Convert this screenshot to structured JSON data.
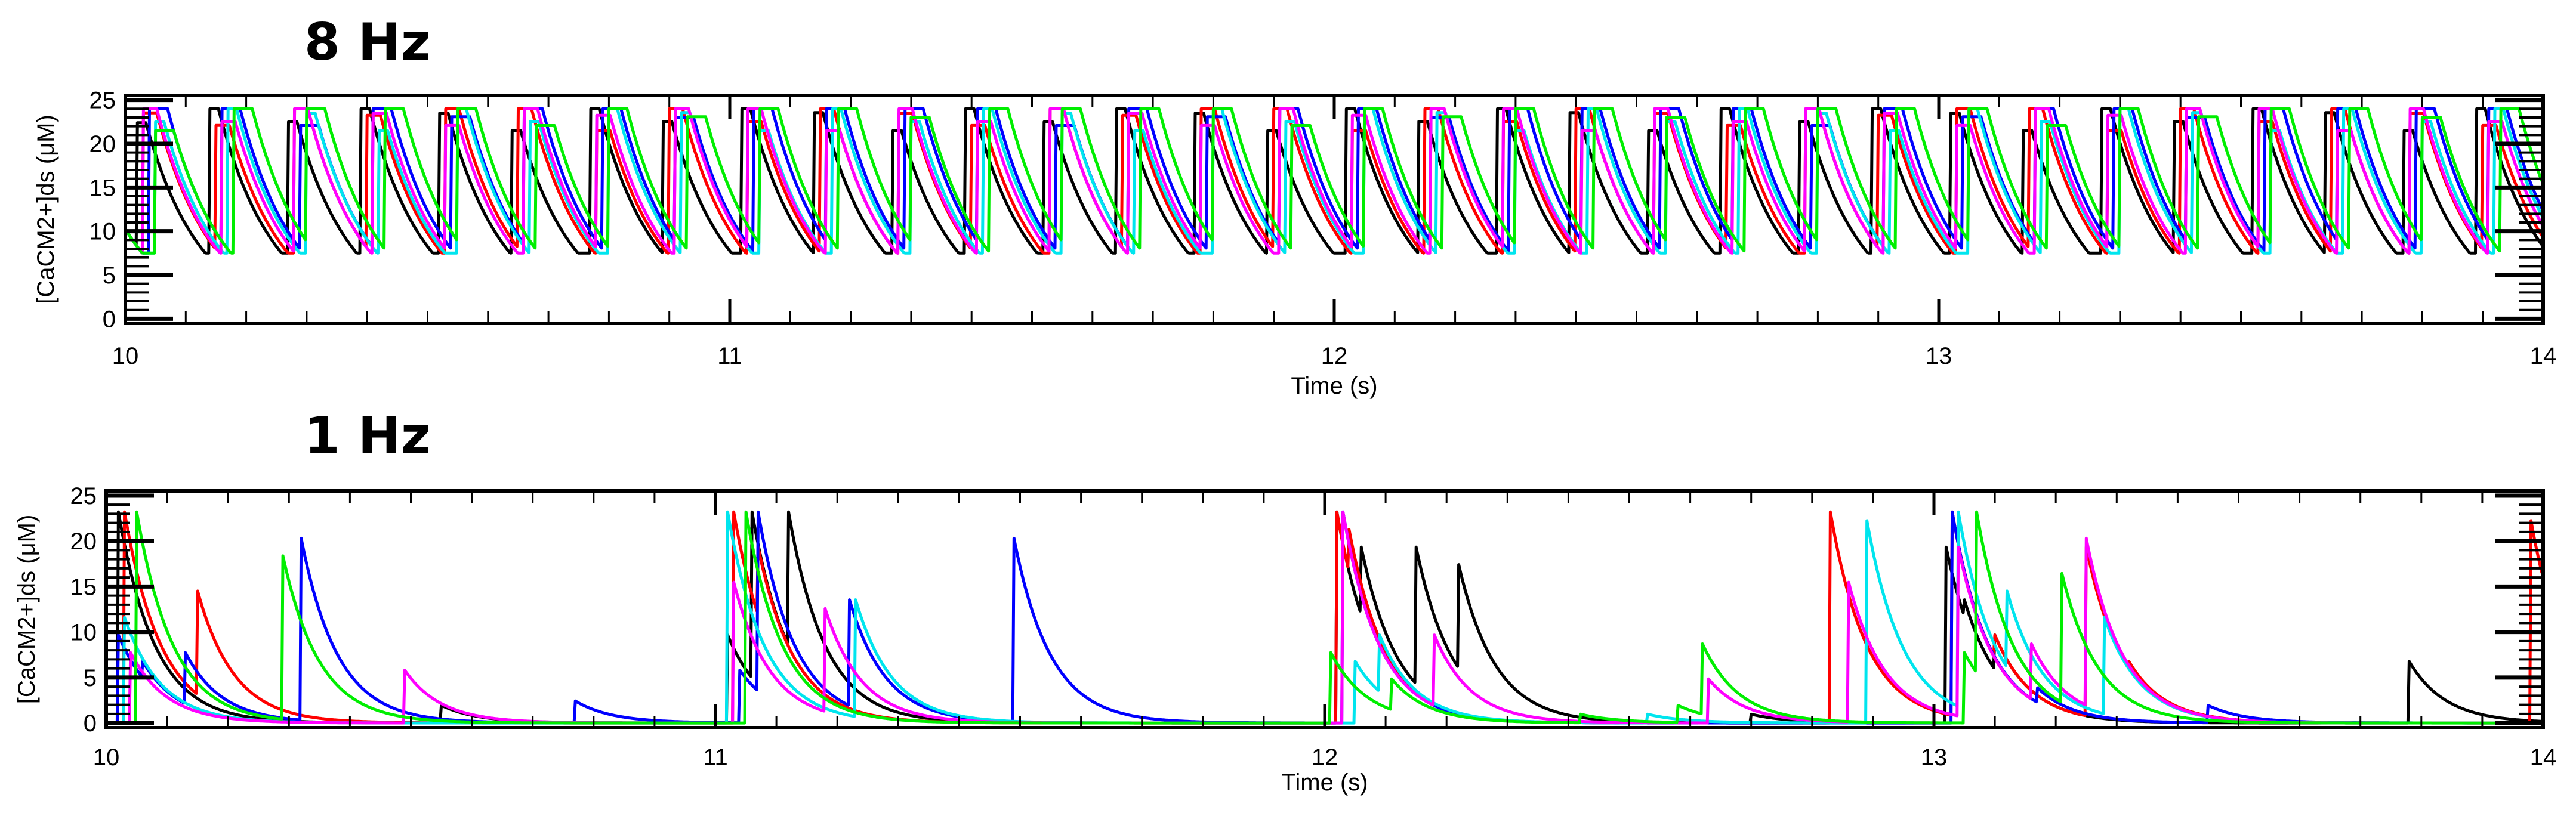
{
  "chart_data": [
    {
      "type": "line",
      "title": "8 Hz",
      "xlabel": "Time (s)",
      "ylabel": "[CaCM2+]ds (μM)",
      "xlim": [
        10,
        14
      ],
      "ylim": [
        0,
        25
      ],
      "xticks": [
        "10",
        "11",
        "12",
        "13",
        "14"
      ],
      "yticks": [
        "0",
        "5",
        "10",
        "15",
        "20",
        "25"
      ],
      "stimulus_rate_hz": 8,
      "colors": [
        "#000000",
        "#ff0000",
        "#0000ff",
        "#00e5ee",
        "#ff00ff",
        "#00ff00"
      ],
      "series": [
        {
          "name": "black",
          "color": "#000000",
          "spike_times": [
            10.02,
            10.14,
            10.27,
            10.39,
            10.52,
            10.64,
            10.77,
            10.89,
            11.02,
            11.14,
            11.27,
            11.39,
            11.52,
            11.64,
            11.77,
            11.89,
            12.02,
            12.14,
            12.27,
            12.39,
            12.52,
            12.64,
            12.77,
            12.89,
            13.02,
            13.14,
            13.27,
            13.39,
            13.52,
            13.64,
            13.77,
            13.89
          ],
          "peak": 24
        },
        {
          "name": "red",
          "color": "#ff0000",
          "spike_times": [
            10.03,
            10.15,
            10.28,
            10.4,
            10.53,
            10.65,
            10.78,
            10.9,
            11.03,
            11.15,
            11.28,
            11.4,
            11.53,
            11.65,
            11.78,
            11.9,
            12.03,
            12.15,
            12.28,
            12.4,
            12.53,
            12.65,
            12.78,
            12.9,
            13.03,
            13.15,
            13.28,
            13.4,
            13.53,
            13.65,
            13.78,
            13.9
          ],
          "peak": 24
        },
        {
          "name": "blue",
          "color": "#0000ff",
          "spike_times": [
            10.04,
            10.16,
            10.29,
            10.41,
            10.54,
            10.66,
            10.79,
            10.91,
            11.04,
            11.16,
            11.29,
            11.41,
            11.54,
            11.66,
            11.79,
            11.91,
            12.04,
            12.16,
            12.29,
            12.41,
            12.54,
            12.66,
            12.79,
            12.91,
            13.04,
            13.16,
            13.29,
            13.41,
            13.54,
            13.66,
            13.79,
            13.91
          ],
          "peak": 24
        },
        {
          "name": "cyan",
          "color": "#00e5ee",
          "spike_times": [
            10.05,
            10.17,
            10.3,
            10.42,
            10.55,
            10.67,
            10.8,
            10.92,
            11.05,
            11.17,
            11.3,
            11.42,
            11.55,
            11.67,
            11.8,
            11.92,
            12.05,
            12.17,
            12.3,
            12.42,
            12.55,
            12.67,
            12.8,
            12.92,
            13.05,
            13.17,
            13.3,
            13.42,
            13.55,
            13.67,
            13.8,
            13.92
          ],
          "peak": 24
        },
        {
          "name": "magenta",
          "color": "#ff00ff",
          "spike_times": [
            10.03,
            10.16,
            10.28,
            10.41,
            10.53,
            10.66,
            10.78,
            10.91,
            11.03,
            11.16,
            11.28,
            11.41,
            11.53,
            11.66,
            11.78,
            11.91,
            12.03,
            12.16,
            12.28,
            12.41,
            12.53,
            12.66,
            12.78,
            12.91,
            13.03,
            13.16,
            13.28,
            13.41,
            13.53,
            13.66,
            13.78,
            13.91
          ],
          "peak": 24
        },
        {
          "name": "green",
          "color": "#00ee00",
          "spike_times": [
            10.05,
            10.18,
            10.3,
            10.43,
            10.55,
            10.68,
            10.8,
            10.93,
            11.05,
            11.18,
            11.3,
            11.43,
            11.55,
            11.68,
            11.8,
            11.93,
            12.05,
            12.18,
            12.3,
            12.43,
            12.55,
            12.68,
            12.8,
            12.93,
            13.05,
            13.18,
            13.3,
            13.43,
            13.55,
            13.68,
            13.8,
            13.93
          ],
          "peak": 24
        }
      ],
      "decay_tau_s": 0.09,
      "trough": 7.5
    },
    {
      "type": "line",
      "title": "1 Hz",
      "xlabel": "Time (s)",
      "ylabel": "[CaCM2+]ds (μM)",
      "xlim": [
        10,
        14
      ],
      "ylim": [
        0,
        25
      ],
      "xticks": [
        "10",
        "11",
        "12",
        "13",
        "14"
      ],
      "yticks": [
        "0",
        "5",
        "10",
        "15",
        "20",
        "25"
      ],
      "stimulus_rate_hz": 1,
      "series": [
        {
          "name": "black",
          "color": "#000000",
          "events": [
            [
              10.02,
              24
            ],
            [
              10.03,
              10
            ],
            [
              10.55,
              2
            ],
            [
              11.02,
              10
            ],
            [
              11.06,
              24
            ],
            [
              11.12,
              24
            ],
            [
              11.2,
              5
            ],
            [
              12.02,
              24
            ],
            [
              12.06,
              20
            ],
            [
              12.15,
              20
            ],
            [
              12.22,
              18
            ],
            [
              12.27,
              6
            ],
            [
              12.7,
              1
            ],
            [
              13.02,
              20
            ],
            [
              13.05,
              14
            ],
            [
              13.1,
              10
            ],
            [
              13.78,
              7
            ]
          ]
        },
        {
          "name": "red",
          "color": "#ff0000",
          "events": [
            [
              10.03,
              24
            ],
            [
              10.08,
              6
            ],
            [
              10.15,
              15
            ],
            [
              11.03,
              24
            ],
            [
              11.07,
              20
            ],
            [
              12.02,
              24
            ],
            [
              12.04,
              22
            ],
            [
              12.83,
              24
            ],
            [
              13.03,
              24
            ],
            [
              13.1,
              10
            ],
            [
              13.25,
              20
            ],
            [
              13.32,
              7
            ],
            [
              13.98,
              23
            ]
          ]
        },
        {
          "name": "blue",
          "color": "#0000ff",
          "events": [
            [
              10.02,
              10
            ],
            [
              10.06,
              7
            ],
            [
              10.13,
              8
            ],
            [
              10.32,
              21
            ],
            [
              10.77,
              2.5
            ],
            [
              11.04,
              6
            ],
            [
              11.07,
              24
            ],
            [
              11.22,
              14
            ],
            [
              11.49,
              21
            ],
            [
              12.03,
              24
            ],
            [
              12.07,
              10
            ],
            [
              13.03,
              24
            ],
            [
              13.06,
              12
            ],
            [
              13.17,
              4
            ],
            [
              13.45,
              2
            ]
          ]
        },
        {
          "name": "cyan",
          "color": "#00e5ee",
          "events": [
            [
              10.03,
              12
            ],
            [
              11.02,
              24
            ],
            [
              11.23,
              14
            ],
            [
              12.05,
              7
            ],
            [
              12.09,
              10
            ],
            [
              12.53,
              1
            ],
            [
              12.89,
              23
            ],
            [
              13.04,
              24
            ],
            [
              13.12,
              15
            ],
            [
              13.28,
              12
            ]
          ]
        },
        {
          "name": "magenta",
          "color": "#ff00ff",
          "events": [
            [
              10.04,
              8
            ],
            [
              10.49,
              6
            ],
            [
              11.03,
              16
            ],
            [
              11.18,
              13
            ],
            [
              12.03,
              24
            ],
            [
              12.18,
              10
            ],
            [
              12.63,
              5
            ],
            [
              12.86,
              16
            ],
            [
              13.04,
              20
            ],
            [
              13.16,
              9
            ],
            [
              13.25,
              21
            ]
          ]
        },
        {
          "name": "green",
          "color": "#00ee00",
          "events": [
            [
              10.05,
              24
            ],
            [
              10.29,
              19
            ],
            [
              10.3,
              8
            ],
            [
              11.05,
              24
            ],
            [
              12.01,
              8
            ],
            [
              12.11,
              5
            ],
            [
              12.42,
              1
            ],
            [
              12.58,
              2
            ],
            [
              12.62,
              9
            ],
            [
              13.05,
              8
            ],
            [
              13.07,
              24
            ],
            [
              13.21,
              17
            ]
          ]
        }
      ],
      "decay_tau_s": 0.06
    }
  ]
}
